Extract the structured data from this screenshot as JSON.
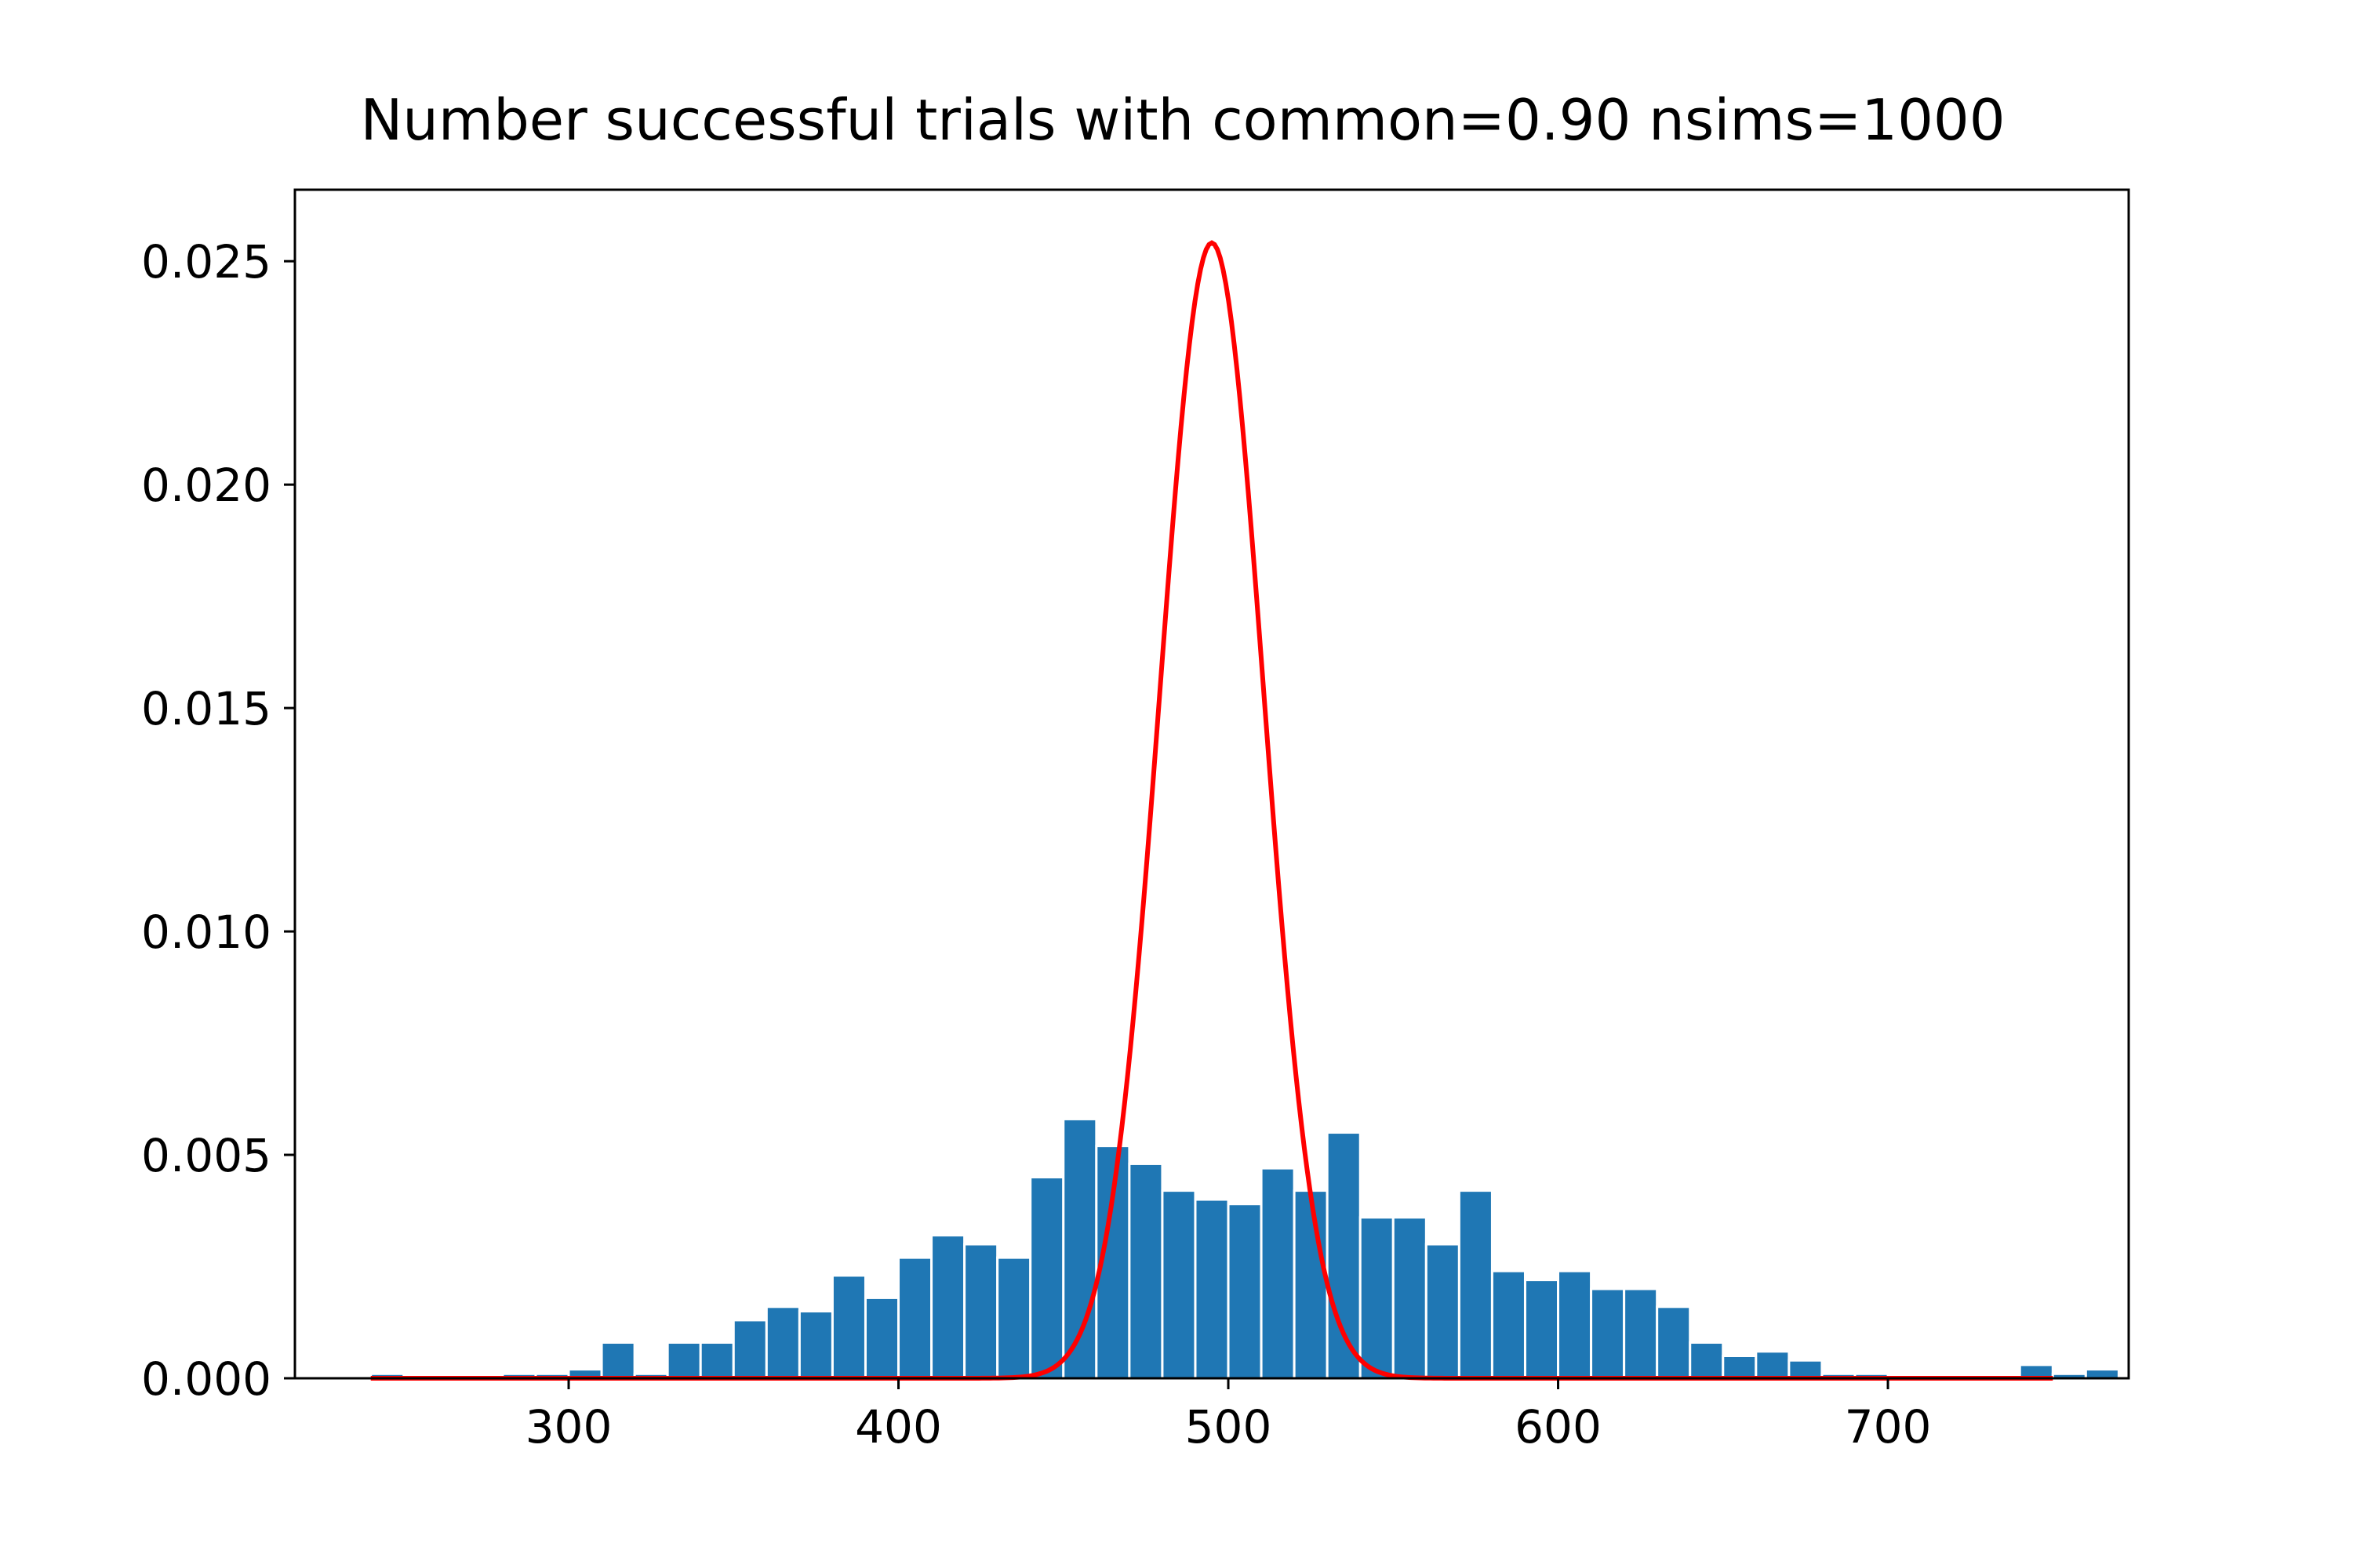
{
  "chart_data": {
    "type": "bar",
    "title": "Number successful trials with common=0.90 nsims=1000",
    "xlabel": "",
    "ylabel": "",
    "xlim": [
      217,
      773
    ],
    "ylim": [
      0,
      0.0266
    ],
    "xticks": [
      300,
      400,
      500,
      600,
      700
    ],
    "xtick_labels": [
      "300",
      "400",
      "500",
      "600",
      "700"
    ],
    "yticks": [
      0,
      0.005,
      0.01,
      0.015,
      0.02,
      0.025
    ],
    "ytick_labels": [
      "0.000",
      "0.005",
      "0.010",
      "0.015",
      "0.020",
      "0.025"
    ],
    "grid": false,
    "legend": "none",
    "histogram": {
      "bin_start": 240,
      "bin_width": 10,
      "density": [
        0.0001,
        0.0,
        0.0,
        0.0,
        0.0001,
        0.0001,
        0.0002,
        0.0008,
        0.0001,
        0.0008,
        0.0008,
        0.0013,
        0.0016,
        0.0015,
        0.0023,
        0.0018,
        0.0027,
        0.0032,
        0.003,
        0.0027,
        0.0045,
        0.0058,
        0.0052,
        0.0048,
        0.0042,
        0.004,
        0.0039,
        0.0047,
        0.0042,
        0.0055,
        0.0036,
        0.0036,
        0.003,
        0.0042,
        0.0024,
        0.0022,
        0.0024,
        0.002,
        0.002,
        0.0016,
        0.0008,
        0.0005,
        0.0006,
        0.0004,
        0.0001,
        0.0001,
        0.0,
        0.0,
        0.0,
        0.0,
        0.0003,
        0.0001,
        0.0002
      ],
      "color": "#1f77b4",
      "edge_color": "#ffffff"
    },
    "curve": {
      "type": "normal-pdf",
      "mean": 495,
      "sd": 15.7,
      "x_range": [
        240,
        750
      ],
      "color": "#ff0000"
    }
  }
}
